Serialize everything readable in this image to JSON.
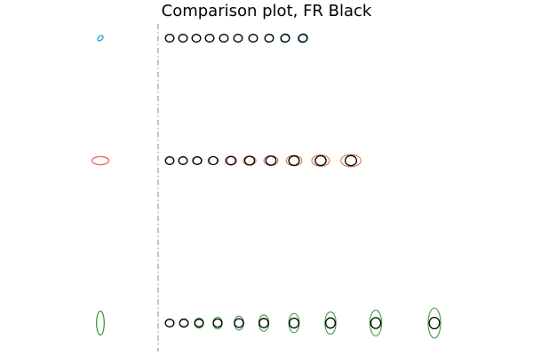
{
  "title": "Comparison plot, FR Black",
  "chart_data": {
    "type": "scatter",
    "title": "Comparison plot, FR Black",
    "xlabel": "",
    "ylabel": "",
    "grid": false,
    "axes_visible": false,
    "reference_line": {
      "style": "dash-dot",
      "color": "#888888"
    },
    "reference_ellipse_color": "#000000",
    "rows": [
      {
        "color": "#1f9fd1",
        "model_ellipse": {
          "rx": 3.6,
          "ry": 2.2,
          "angle": -45
        },
        "comparison_ellipses": [
          {
            "rx": 4.8,
            "ry": 4.3,
            "angle": 0
          },
          {
            "rx": 4.8,
            "ry": 4.3,
            "angle": 0
          },
          {
            "rx": 4.8,
            "ry": 4.3,
            "angle": 0
          },
          {
            "rx": 4.8,
            "ry": 4.3,
            "angle": 0
          },
          {
            "rx": 4.8,
            "ry": 4.3,
            "angle": 0
          },
          {
            "rx": 4.8,
            "ry": 4.3,
            "angle": 0
          },
          {
            "rx": 4.8,
            "ry": 4.3,
            "angle": 0
          },
          {
            "rx": 4.9,
            "ry": 4.4,
            "angle": -30
          },
          {
            "rx": 5.2,
            "ry": 4.6,
            "angle": -30
          },
          {
            "rx": 5.5,
            "ry": 4.8,
            "angle": -30
          }
        ],
        "reference_ellipses": [
          {
            "rx": 4.8,
            "ry": 4.3
          },
          {
            "rx": 4.8,
            "ry": 4.3
          },
          {
            "rx": 4.8,
            "ry": 4.3
          },
          {
            "rx": 4.8,
            "ry": 4.3
          },
          {
            "rx": 4.8,
            "ry": 4.3
          },
          {
            "rx": 4.8,
            "ry": 4.3
          },
          {
            "rx": 4.8,
            "ry": 4.3
          },
          {
            "rx": 4.8,
            "ry": 4.3
          },
          {
            "rx": 4.8,
            "ry": 4.3
          },
          {
            "rx": 4.8,
            "ry": 4.3
          }
        ]
      },
      {
        "color": "#e07050",
        "model_ellipse": {
          "rx": 9.5,
          "ry": 4.6,
          "angle": 0
        },
        "comparison_ellipses": [
          {
            "rx": 4.8,
            "ry": 4.3,
            "angle": 0
          },
          {
            "rx": 5.0,
            "ry": 4.4,
            "angle": 0
          },
          {
            "rx": 5.3,
            "ry": 4.5,
            "angle": 0
          },
          {
            "rx": 5.8,
            "ry": 4.6,
            "angle": 0
          },
          {
            "rx": 6.4,
            "ry": 4.8,
            "angle": 0
          },
          {
            "rx": 7.1,
            "ry": 5.1,
            "angle": 0
          },
          {
            "rx": 7.9,
            "ry": 5.4,
            "angle": 0
          },
          {
            "rx": 8.8,
            "ry": 5.8,
            "angle": 0
          },
          {
            "rx": 10.0,
            "ry": 6.3,
            "angle": 0
          },
          {
            "rx": 11.3,
            "ry": 6.8,
            "angle": 0
          }
        ],
        "reference_ellipses": [
          {
            "rx": 4.8,
            "ry": 4.3
          },
          {
            "rx": 4.8,
            "ry": 4.3
          },
          {
            "rx": 4.8,
            "ry": 4.3
          },
          {
            "rx": 5.0,
            "ry": 4.5
          },
          {
            "rx": 5.3,
            "ry": 4.7
          },
          {
            "rx": 5.5,
            "ry": 4.9
          },
          {
            "rx": 5.7,
            "ry": 5.1
          },
          {
            "rx": 5.9,
            "ry": 5.3
          },
          {
            "rx": 6.1,
            "ry": 5.5
          },
          {
            "rx": 6.4,
            "ry": 5.7
          }
        ]
      },
      {
        "color": "#3a9e3a",
        "model_ellipse": {
          "rx": 4.3,
          "ry": 13.5,
          "angle": 0
        },
        "comparison_ellipses": [
          {
            "rx": 4.8,
            "ry": 4.3,
            "angle": 0
          },
          {
            "rx": 4.9,
            "ry": 4.8,
            "angle": 0
          },
          {
            "rx": 5.0,
            "ry": 5.6,
            "angle": 0
          },
          {
            "rx": 5.1,
            "ry": 6.6,
            "angle": 0
          },
          {
            "rx": 5.3,
            "ry": 7.8,
            "angle": 0
          },
          {
            "rx": 5.6,
            "ry": 9.2,
            "angle": 0
          },
          {
            "rx": 5.9,
            "ry": 10.8,
            "angle": 0
          },
          {
            "rx": 6.2,
            "ry": 12.6,
            "angle": 0
          },
          {
            "rx": 6.6,
            "ry": 14.6,
            "angle": 0
          },
          {
            "rx": 7.0,
            "ry": 17.0,
            "angle": 0
          }
        ],
        "reference_ellipses": [
          {
            "rx": 4.8,
            "ry": 4.3
          },
          {
            "rx": 4.8,
            "ry": 4.3
          },
          {
            "rx": 4.8,
            "ry": 4.3
          },
          {
            "rx": 4.9,
            "ry": 4.6
          },
          {
            "rx": 5.0,
            "ry": 4.9
          },
          {
            "rx": 5.1,
            "ry": 5.2
          },
          {
            "rx": 5.3,
            "ry": 5.5
          },
          {
            "rx": 5.4,
            "ry": 5.8
          },
          {
            "rx": 5.6,
            "ry": 6.1
          },
          {
            "rx": 5.8,
            "ry": 6.4
          }
        ]
      }
    ]
  }
}
